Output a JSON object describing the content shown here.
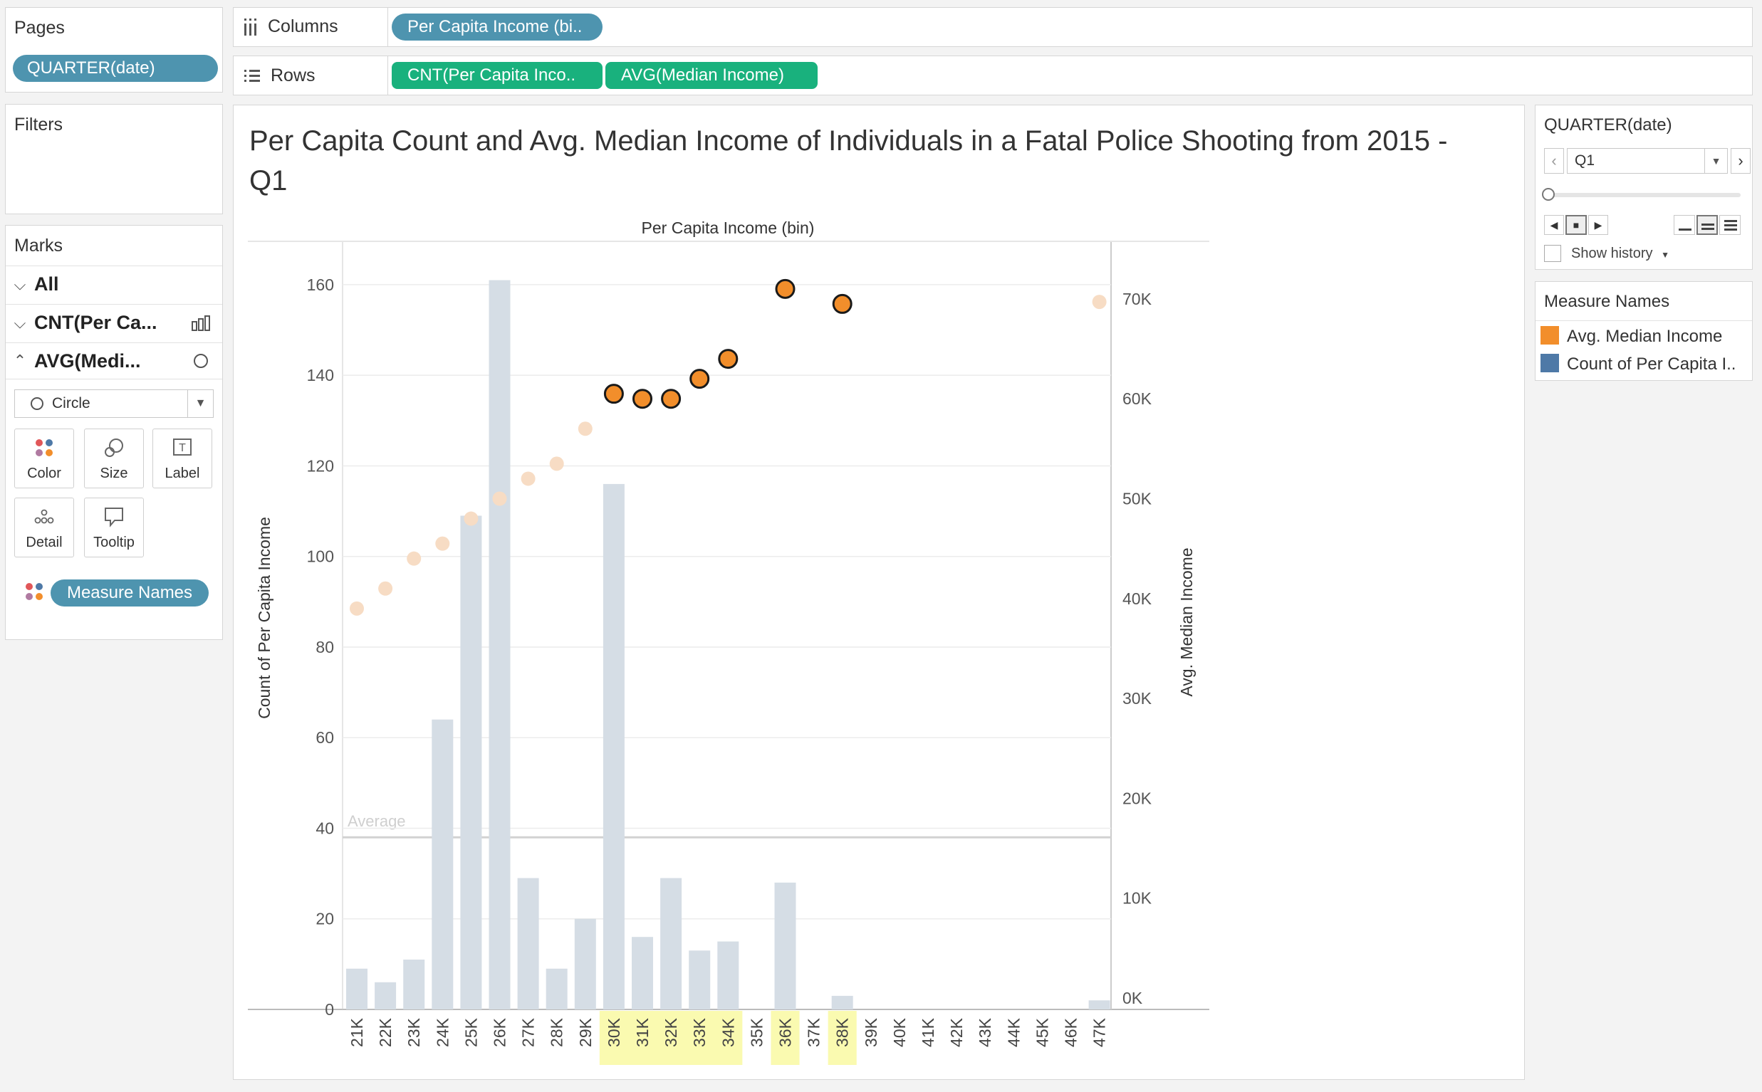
{
  "pages": {
    "title": "Pages",
    "pill": "QUARTER(date)"
  },
  "shelves": {
    "columns_label": "Columns",
    "columns_pill": "Per Capita Income (bi..",
    "rows_label": "Rows",
    "rows_pills": [
      "CNT(Per Capita Inco..",
      "AVG(Median Income)"
    ]
  },
  "filters": {
    "title": "Filters"
  },
  "marks": {
    "title": "Marks",
    "rows": [
      {
        "label": "All"
      },
      {
        "label": "CNT(Per Ca..."
      },
      {
        "label": "AVG(Medi..."
      }
    ],
    "mark_type": "Circle",
    "buttons": {
      "color": "Color",
      "size": "Size",
      "label": "Label",
      "detail": "Detail",
      "tooltip": "Tooltip"
    },
    "measure_pill": "Measure Names"
  },
  "page_control": {
    "title": "QUARTER(date)",
    "value": "Q1",
    "show_history": "Show history"
  },
  "legend": {
    "title": "Measure Names",
    "items": [
      {
        "label": "Avg. Median Income",
        "color": "#f28e2b"
      },
      {
        "label": "Count of Per Capita I..",
        "color": "#4e79a7"
      }
    ]
  },
  "chart_data": {
    "type": "bar",
    "title": "Per Capita Count and Avg. Median Income of Individuals in a Fatal Police Shooting from 2015 -",
    "title_line2": "Q1",
    "xlabel": "Per Capita Income (bin)",
    "ylabel": "Count of Per Capita Income",
    "y2label": "Avg. Median Income",
    "categories": [
      "21K",
      "22K",
      "23K",
      "24K",
      "25K",
      "26K",
      "27K",
      "28K",
      "29K",
      "30K",
      "31K",
      "32K",
      "33K",
      "34K",
      "35K",
      "36K",
      "37K",
      "38K",
      "39K",
      "40K",
      "41K",
      "42K",
      "43K",
      "44K",
      "45K",
      "46K",
      "47K"
    ],
    "highlighted_categories": [
      "30K",
      "31K",
      "32K",
      "33K",
      "34K",
      "36K",
      "38K"
    ],
    "series": [
      {
        "name": "Count of Per Capita Income",
        "type": "bar",
        "axis": "left",
        "color": "#d5dde5",
        "values": [
          9,
          6,
          11,
          64,
          109,
          161,
          29,
          9,
          20,
          116,
          16,
          29,
          13,
          15,
          null,
          28,
          null,
          3,
          null,
          null,
          null,
          null,
          null,
          null,
          null,
          null,
          2
        ]
      },
      {
        "name": "Avg. Median Income",
        "type": "circle",
        "axis": "right",
        "color": "#f28e2b",
        "faded_color": "#f7dcc4",
        "values": [
          39000,
          41000,
          44000,
          45500,
          48000,
          50000,
          52000,
          53500,
          57000,
          60500,
          60000,
          60000,
          62000,
          64000,
          null,
          71000,
          null,
          69500,
          null,
          null,
          null,
          null,
          null,
          null,
          null,
          null,
          69700
        ]
      }
    ],
    "ylim": [
      0,
      160
    ],
    "yticks": [
      0,
      20,
      40,
      60,
      80,
      100,
      120,
      140,
      160
    ],
    "y2lim": [
      0,
      70000
    ],
    "y2ticks": [
      {
        "value": 0,
        "label": "0K"
      },
      {
        "value": 10000,
        "label": "10K"
      },
      {
        "value": 20000,
        "label": "20K"
      },
      {
        "value": 30000,
        "label": "30K"
      },
      {
        "value": 40000,
        "label": "40K"
      },
      {
        "value": 50000,
        "label": "50K"
      },
      {
        "value": 60000,
        "label": "60K"
      },
      {
        "value": 70000,
        "label": "70K"
      }
    ],
    "reference_line": {
      "label": "Average",
      "value": 38
    },
    "grid": true
  }
}
